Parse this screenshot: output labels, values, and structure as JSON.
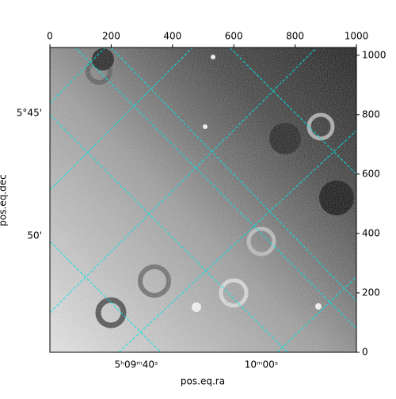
{
  "chart_data": {
    "type": "image",
    "xlabel": "pos.eq.ra",
    "ylabel": "pos.eq.dec",
    "xlim": [
      0,
      1000
    ],
    "ylim": [
      0,
      1026
    ],
    "xticks": [
      0,
      200,
      400,
      600,
      800,
      1000
    ],
    "yticks": [
      0,
      200,
      400,
      600,
      800,
      1000
    ],
    "ra_tick_labels": [
      "5ʰ09ᵐ40ˢ",
      "10ᵐ00ˢ"
    ],
    "dec_tick_labels": [
      "5°45'",
      "50'"
    ],
    "grid_color": "#00e5e5"
  }
}
